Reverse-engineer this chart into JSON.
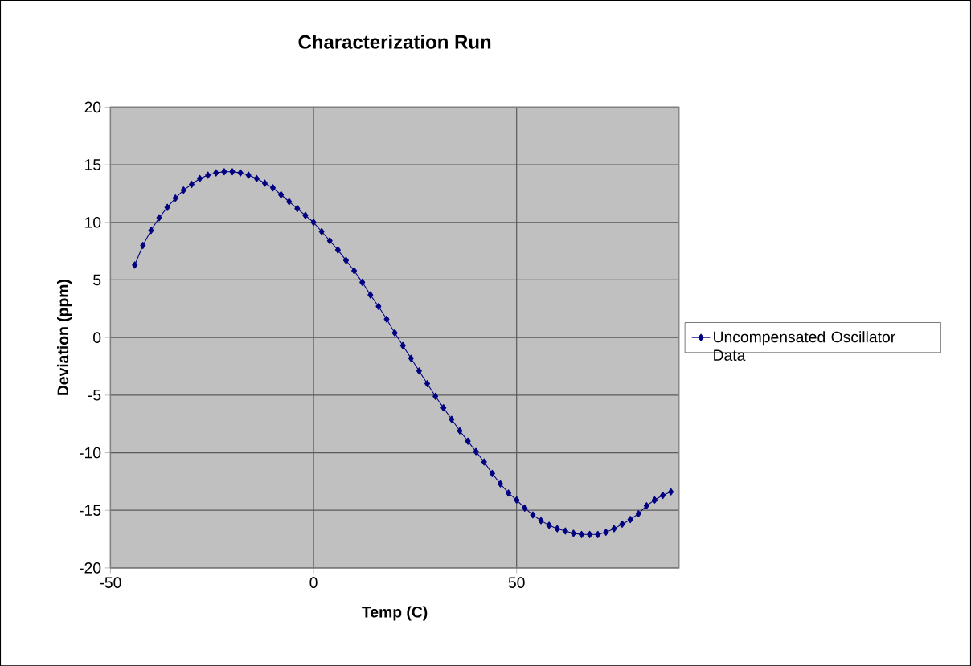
{
  "chart_data": {
    "type": "line",
    "title": "Characterization Run",
    "xlabel": "Temp (C)",
    "ylabel": "Deviation  (ppm)",
    "xlim": [
      -50,
      90
    ],
    "xticks": [
      -50,
      0,
      50
    ],
    "ylim": [
      -20,
      20
    ],
    "yticks": [
      -20,
      -15,
      -10,
      -5,
      0,
      5,
      10,
      15,
      20
    ],
    "grid": true,
    "legend": "right",
    "marker": "diamond",
    "series": [
      {
        "name": "Uncompensated Oscillator Data",
        "color": "#000080",
        "x": [
          -44,
          -42,
          -40,
          -38,
          -36,
          -34,
          -32,
          -30,
          -28,
          -26,
          -24,
          -22,
          -20,
          -18,
          -16,
          -14,
          -12,
          -10,
          -8,
          -6,
          -4,
          -2,
          0,
          2,
          4,
          6,
          8,
          10,
          12,
          14,
          16,
          18,
          20,
          22,
          24,
          26,
          28,
          30,
          32,
          34,
          36,
          38,
          40,
          42,
          44,
          46,
          48,
          50,
          52,
          54,
          56,
          58,
          60,
          62,
          64,
          66,
          68,
          70,
          72,
          74,
          76,
          78,
          80,
          82,
          84,
          86,
          88
        ],
        "values": [
          6.3,
          8.0,
          9.3,
          10.4,
          11.3,
          12.1,
          12.8,
          13.3,
          13.8,
          14.1,
          14.3,
          14.4,
          14.4,
          14.3,
          14.1,
          13.8,
          13.4,
          13.0,
          12.4,
          11.8,
          11.2,
          10.6,
          10.0,
          9.2,
          8.4,
          7.6,
          6.7,
          5.8,
          4.8,
          3.7,
          2.7,
          1.6,
          0.4,
          -0.7,
          -1.8,
          -2.9,
          -4.0,
          -5.1,
          -6.1,
          -7.1,
          -8.1,
          -9.0,
          -9.9,
          -10.8,
          -11.8,
          -12.7,
          -13.5,
          -14.1,
          -14.8,
          -15.4,
          -15.9,
          -16.3,
          -16.6,
          -16.8,
          -17.0,
          -17.1,
          -17.1,
          -17.1,
          -16.9,
          -16.6,
          -16.2,
          -15.8,
          -15.3,
          -14.6,
          -14.1,
          -13.7,
          -13.4
        ]
      }
    ]
  }
}
